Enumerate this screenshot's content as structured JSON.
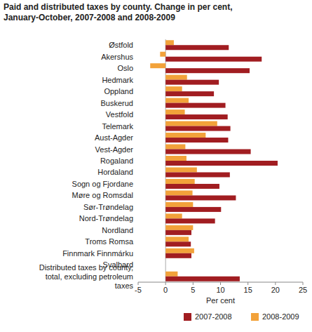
{
  "chart_data": {
    "type": "bar",
    "orientation": "horizontal",
    "title": "Paid and distributed taxes by county. Change in per cent, January-October, 2007-2008 and 2008-2009",
    "x_label": "Per cent",
    "categories": [
      "Østfold",
      "Akershus",
      "Oslo",
      "Hedmark",
      "Oppland",
      "Buskerud",
      "Vestfold",
      "Telemark",
      "Aust-Agder",
      "Vest-Agder",
      "Rogaland",
      "Hordaland",
      "Sogn og Fjordane",
      "Møre og Romsdal",
      "Sør-Trøndelag",
      "Nord-Trøndelag",
      "Nordland",
      "Troms Romsa",
      "Finnmark Finnmárku",
      "Svalbard",
      "Distributed taxes by county, total, excluding petroleum taxes"
    ],
    "series": [
      {
        "name": "2007-2008",
        "color": "#a11d21",
        "values": [
          11.5,
          17.5,
          15.3,
          9.7,
          8.8,
          10.9,
          11.3,
          11.8,
          11.4,
          15.5,
          20.4,
          11.7,
          9.8,
          12.8,
          10.1,
          9.0,
          4.7,
          4.6,
          4.7,
          0,
          13.5
        ]
      },
      {
        "name": "2008-2009",
        "color": "#f2a23a",
        "values": [
          1.5,
          -1.0,
          -2.8,
          3.9,
          3.0,
          4.2,
          3.5,
          9.4,
          7.3,
          3.6,
          3.8,
          5.7,
          5.3,
          4.9,
          5.0,
          3.0,
          5.0,
          4.2,
          5.2,
          0,
          2.2
        ]
      }
    ],
    "xlim": [
      -5,
      25
    ],
    "xticks": [
      -5,
      0,
      5,
      10,
      15,
      20,
      25
    ],
    "grid": false,
    "legend": "bottom"
  }
}
